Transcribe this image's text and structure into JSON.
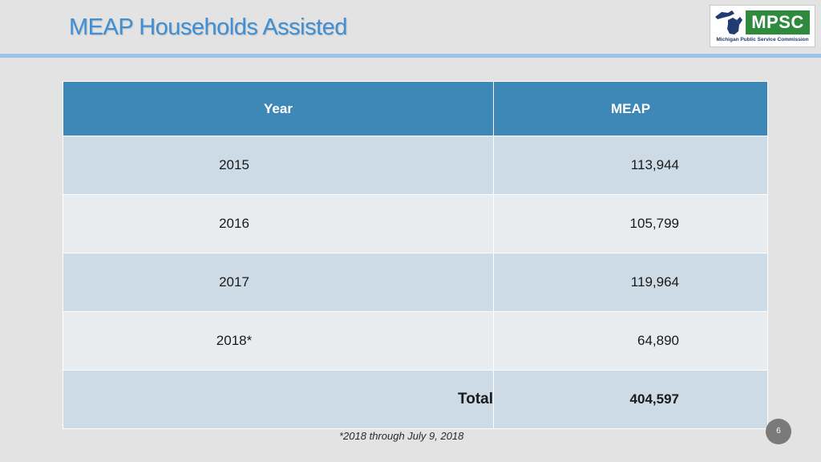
{
  "slide": {
    "title": "MEAP Households Assisted",
    "footnote": "*2018 through July 9, 2018",
    "page_number": "6"
  },
  "logo": {
    "mark_text": "MPSC",
    "subtitle": "Michigan Public Service Commission",
    "icon": "michigan-map-icon"
  },
  "table": {
    "headers": [
      "Year",
      "MEAP"
    ],
    "rows": [
      {
        "year": "2015",
        "meap": "113,944"
      },
      {
        "year": "2016",
        "meap": "105,799"
      },
      {
        "year": "2017",
        "meap": "119,964"
      },
      {
        "year": "2018*",
        "meap": "64,890"
      }
    ],
    "total_label": "Total",
    "total_value": "404,597"
  },
  "colors": {
    "title": "#3d8fd6",
    "header_fill": "#3d88b6",
    "row_band_a": "#cddbe6",
    "row_band_b": "#e8ecef",
    "logo_green": "#2e8b3e"
  }
}
